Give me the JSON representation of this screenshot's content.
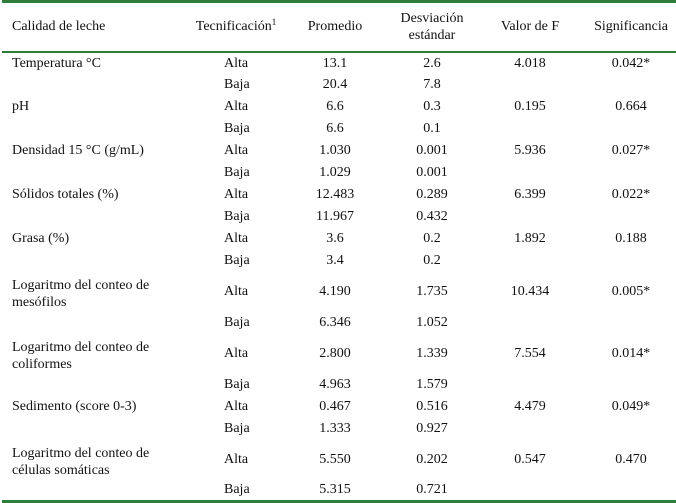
{
  "headers": {
    "calidad": "Calidad de leche",
    "tecnificacion": "Tecnificación",
    "tecnificacion_sup": "1",
    "promedio": "Promedio",
    "desviacion_line1": "Desviación",
    "desviacion_line2": "estándar",
    "valor_f": "Valor de F",
    "significancia": "Significancia"
  },
  "rows": [
    {
      "param": "Temperatura °C",
      "alta": {
        "label": "Alta",
        "promedio": "13.1",
        "desv": "2.6"
      },
      "baja": {
        "label": "Baja",
        "promedio": "20.4",
        "desv": "7.8"
      },
      "f": "4.018",
      "sig": "0.042*"
    },
    {
      "param": "pH",
      "alta": {
        "label": "Alta",
        "promedio": "6.6",
        "desv": "0.3"
      },
      "baja": {
        "label": "Baja",
        "promedio": "6.6",
        "desv": "0.1"
      },
      "f": "0.195",
      "sig": "0.664"
    },
    {
      "param": "Densidad 15 °C (g/mL)",
      "alta": {
        "label": "Alta",
        "promedio": "1.030",
        "desv": "0.001"
      },
      "baja": {
        "label": "Baja",
        "promedio": "1.029",
        "desv": "0.001"
      },
      "f": "5.936",
      "sig": "0.027*"
    },
    {
      "param": "Sólidos totales (%)",
      "alta": {
        "label": "Alta",
        "promedio": "12.483",
        "desv": "0.289"
      },
      "baja": {
        "label": "Baja",
        "promedio": "11.967",
        "desv": "0.432"
      },
      "f": "6.399",
      "sig": "0.022*"
    },
    {
      "param": "Grasa (%)",
      "alta": {
        "label": "Alta",
        "promedio": "3.6",
        "desv": "0.2"
      },
      "baja": {
        "label": "Baja",
        "promedio": "3.4",
        "desv": "0.2"
      },
      "f": "1.892",
      "sig": "0.188"
    },
    {
      "param_line1": "Logaritmo del conteo de",
      "param_line2": "mesófilos",
      "alta": {
        "label": "Alta",
        "promedio": "4.190",
        "desv": "1.735"
      },
      "baja": {
        "label": "Baja",
        "promedio": "6.346",
        "desv": "1.052"
      },
      "f": "10.434",
      "sig": "0.005*"
    },
    {
      "param_line1": "Logaritmo del conteo de",
      "param_line2": "coliformes",
      "alta": {
        "label": "Alta",
        "promedio": "2.800",
        "desv": "1.339"
      },
      "baja": {
        "label": "Baja",
        "promedio": "4.963",
        "desv": "1.579"
      },
      "f": "7.554",
      "sig": "0.014*"
    },
    {
      "param": "Sedimento (score 0-3)",
      "alta": {
        "label": "Alta",
        "promedio": "0.467",
        "desv": "0.516"
      },
      "baja": {
        "label": "Baja",
        "promedio": "1.333",
        "desv": "0.927"
      },
      "f": "4.479",
      "sig": "0.049*"
    },
    {
      "param_line1": "Logaritmo del conteo de",
      "param_line2": "células somáticas",
      "alta": {
        "label": "Alta",
        "promedio": "5.550",
        "desv": "0.202"
      },
      "baja": {
        "label": "Baja",
        "promedio": "5.315",
        "desv": "0.721"
      },
      "f": "0.547",
      "sig": "0.470"
    }
  ],
  "colors": {
    "rule": "#2f7d3a"
  }
}
